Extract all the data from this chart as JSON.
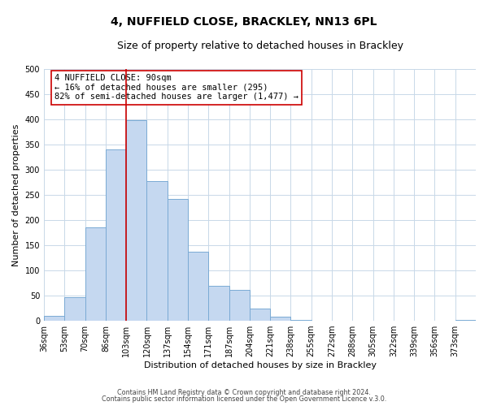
{
  "title": "4, NUFFIELD CLOSE, BRACKLEY, NN13 6PL",
  "subtitle": "Size of property relative to detached houses in Brackley",
  "xlabel": "Distribution of detached houses by size in Brackley",
  "ylabel": "Number of detached properties",
  "footer_line1": "Contains HM Land Registry data © Crown copyright and database right 2024.",
  "footer_line2": "Contains public sector information licensed under the Open Government Licence v.3.0.",
  "bin_labels": [
    "36sqm",
    "53sqm",
    "70sqm",
    "86sqm",
    "103sqm",
    "120sqm",
    "137sqm",
    "154sqm",
    "171sqm",
    "187sqm",
    "204sqm",
    "221sqm",
    "238sqm",
    "255sqm",
    "272sqm",
    "288sqm",
    "305sqm",
    "322sqm",
    "339sqm",
    "356sqm",
    "373sqm"
  ],
  "bar_values": [
    10,
    47,
    185,
    340,
    398,
    277,
    242,
    137,
    70,
    62,
    25,
    8,
    2,
    0,
    0,
    0,
    0,
    0,
    0,
    0,
    2
  ],
  "bar_color": "#c5d8f0",
  "bar_edge_color": "#7aaad4",
  "ylim": [
    0,
    500
  ],
  "yticks": [
    0,
    50,
    100,
    150,
    200,
    250,
    300,
    350,
    400,
    450,
    500
  ],
  "property_line_x": 4.0,
  "property_line_color": "#cc0000",
  "annotation_text": "4 NUFFIELD CLOSE: 90sqm\n← 16% of detached houses are smaller (295)\n82% of semi-detached houses are larger (1,477) →",
  "annotation_box_color": "#ffffff",
  "annotation_box_edge_color": "#cc0000",
  "background_color": "#ffffff",
  "grid_color": "#c8d8e8",
  "title_fontsize": 10,
  "subtitle_fontsize": 9,
  "axis_label_fontsize": 8,
  "tick_fontsize": 7,
  "annotation_fontsize": 7.5
}
